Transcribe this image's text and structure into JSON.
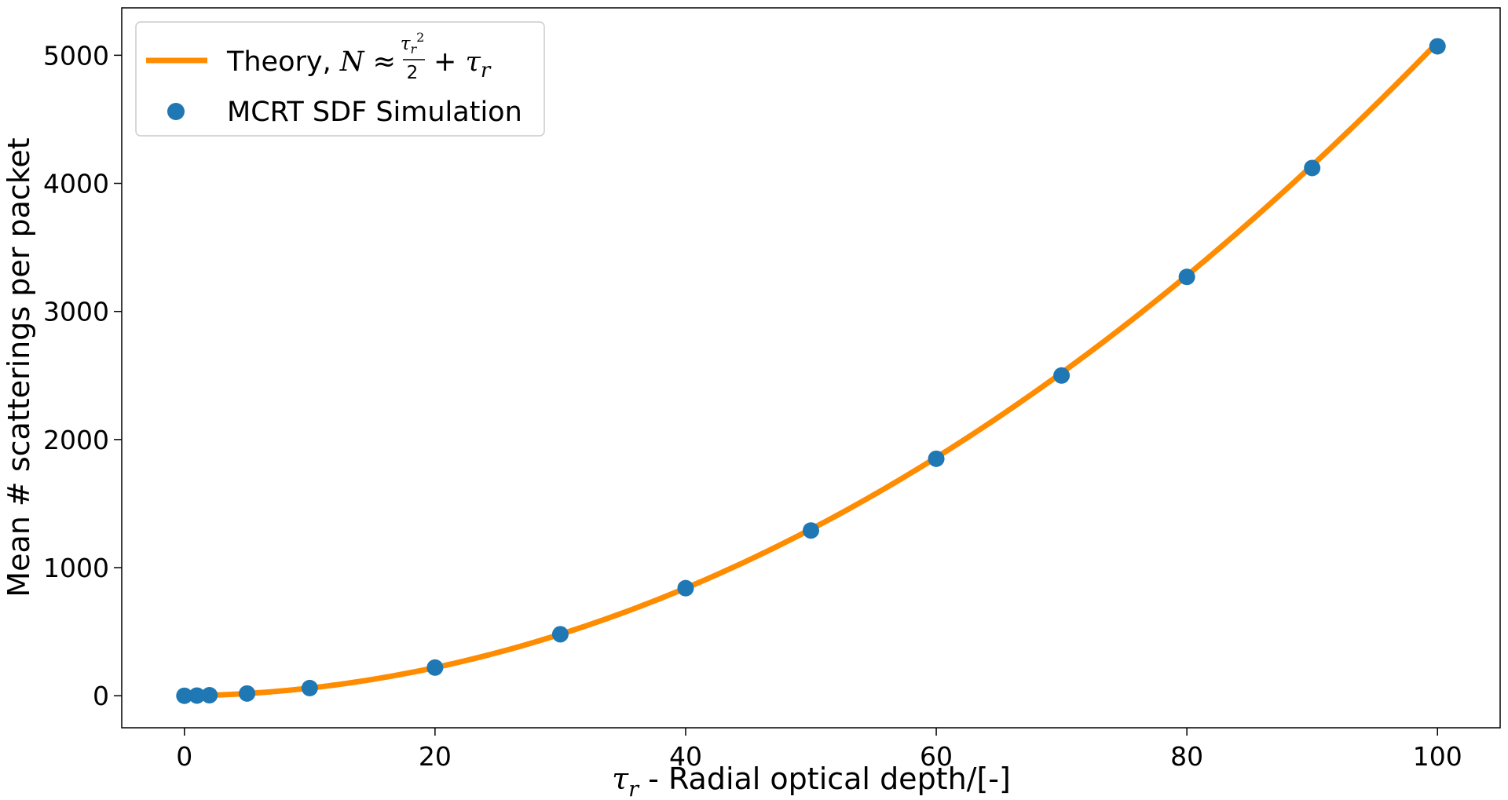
{
  "chart_data": {
    "type": "line",
    "title": "",
    "xlabel_symbol": "τ",
    "xlabel_subscript": "r",
    "xlabel_text": " - Radial optical depth/[-]",
    "ylabel": "Mean # scatterings per packet",
    "xlim": [
      -5,
      105
    ],
    "ylim": [
      -250,
      5370
    ],
    "x_ticks": [
      0,
      20,
      40,
      60,
      80,
      100
    ],
    "y_ticks": [
      0,
      1000,
      2000,
      3000,
      4000,
      5000
    ],
    "grid": false,
    "legend_position": "top-left",
    "series": [
      {
        "name_prefix": "Theory, ",
        "name_math": "N ≈ τr²/2 + τr",
        "kind": "line",
        "color": "#ff8c00",
        "formula": "x^2/2 + x",
        "x_range": [
          0,
          100
        ]
      },
      {
        "name": "MCRT SDF Simulation",
        "kind": "scatter",
        "color": "#1f77b4",
        "x": [
          0,
          1,
          2,
          5,
          10,
          20,
          30,
          40,
          50,
          60,
          70,
          80,
          90,
          100
        ],
        "y": [
          0,
          1.5,
          4,
          17.5,
          60,
          220,
          480,
          840,
          1290,
          1850,
          2500,
          3270,
          4120,
          5070
        ]
      }
    ]
  }
}
